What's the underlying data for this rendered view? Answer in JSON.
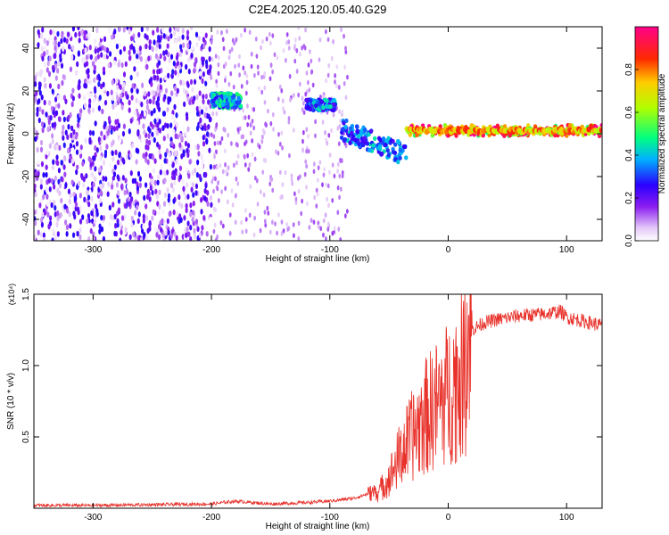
{
  "title": "C2E4.2025.120.05.40.G29",
  "colors": {
    "spectrogram_low": "#e8d8f8",
    "spectrogram_mid": "#6a00e8",
    "snr_line": "#e8312a"
  },
  "chart_data": [
    {
      "type": "heatmap",
      "xlabel": "Height of straight line (km)",
      "ylabel": "Frequency (Hz)",
      "xlim": [
        -350,
        130
      ],
      "ylim": [
        -50,
        50
      ],
      "x_ticks": [
        -300,
        -200,
        -100,
        0,
        100
      ],
      "y_ticks": [
        -40,
        -20,
        0,
        20,
        40
      ],
      "colorbar": {
        "label": "Normalized spectral amplitude",
        "range": [
          0.0,
          1.0
        ],
        "ticks": [
          "0.0",
          "0.2",
          "0.4",
          "0.6",
          "0.8"
        ],
        "tick_values": [
          0.0,
          0.2,
          0.4,
          0.6,
          0.8
        ]
      },
      "features": [
        {
          "x_range": [
            -350,
            -200
          ],
          "f_range": [
            -50,
            50
          ],
          "amplitude": 0.15
        },
        {
          "x_range": [
            -200,
            -175
          ],
          "f_range": [
            12,
            19
          ],
          "amplitude": 0.4
        },
        {
          "x_range": [
            -120,
            -95
          ],
          "f_range": [
            11,
            16
          ],
          "amplitude": 0.35
        },
        {
          "x_range": [
            -90,
            -35
          ],
          "f_range": [
            -18,
            4
          ],
          "amplitude": 0.35
        },
        {
          "x_range": [
            -35,
            130
          ],
          "f_range": [
            -1,
            4
          ],
          "amplitude": 0.8
        }
      ]
    },
    {
      "type": "line",
      "xlabel": "Height of straight line (km)",
      "ylabel": "SNR (10 * v/v)",
      "y_multiplier": "(x10⁴)",
      "xlim": [
        -350,
        130
      ],
      "ylim": [
        0,
        1.5
      ],
      "x_ticks": [
        -300,
        -200,
        -100,
        0,
        100
      ],
      "y_ticks": [
        0.5,
        1.0,
        1.5
      ],
      "y_tick_labels": [
        "0.5",
        "1.0",
        "1.5"
      ],
      "series": [
        {
          "x": [
            -350,
            -300,
            -250,
            -200,
            -180,
            -150,
            -120,
            -100,
            -80,
            -60,
            -50,
            -40,
            -30,
            -20,
            -10,
            0,
            10,
            20,
            30,
            40,
            60,
            80,
            95,
            100,
            110,
            130
          ],
          "y": [
            0.02,
            0.02,
            0.025,
            0.03,
            0.05,
            0.03,
            0.04,
            0.05,
            0.07,
            0.12,
            0.25,
            0.45,
            0.6,
            0.75,
            0.85,
            0.95,
            1.1,
            1.25,
            1.3,
            1.32,
            1.35,
            1.36,
            1.38,
            1.34,
            1.32,
            1.28
          ]
        }
      ]
    }
  ]
}
